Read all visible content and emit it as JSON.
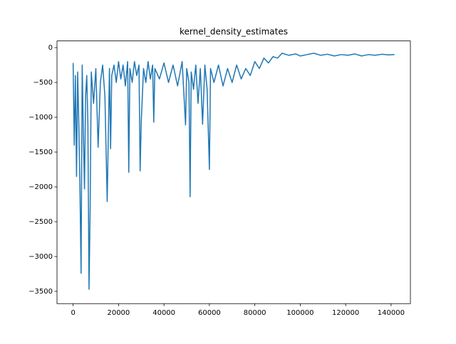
{
  "chart_data": {
    "type": "line",
    "title": "kernel_density_estimates",
    "x": [
      0,
      500,
      1000,
      1500,
      2000,
      2500,
      3000,
      3500,
      4000,
      4500,
      5000,
      5500,
      6000,
      6500,
      7000,
      7500,
      8000,
      9000,
      10000,
      11000,
      12000,
      13000,
      14000,
      15000,
      16000,
      16500,
      17000,
      18000,
      19000,
      20000,
      21000,
      22000,
      23000,
      24000,
      24500,
      25000,
      26000,
      27000,
      28000,
      29000,
      29500,
      30000,
      31000,
      32000,
      33000,
      34000,
      35000,
      35500,
      36000,
      38000,
      40000,
      42000,
      44000,
      46000,
      48000,
      49500,
      50000,
      51000,
      51500,
      52000,
      53000,
      54000,
      55000,
      56000,
      57000,
      58000,
      59000,
      60000,
      60500,
      62000,
      64000,
      66000,
      68000,
      70000,
      72000,
      74000,
      76000,
      78000,
      80000,
      82000,
      84000,
      86000,
      88000,
      90000,
      92000,
      95000,
      98000,
      100000,
      103000,
      106000,
      109000,
      112000,
      115000,
      118000,
      121000,
      124000,
      127000,
      130000,
      133000,
      136000,
      139000,
      141500
    ],
    "series": [
      {
        "color": "#1f77b4",
        "values": [
          -220,
          -1400,
          -400,
          -1850,
          -350,
          -1100,
          -2000,
          -3240,
          -250,
          -1200,
          -2030,
          -700,
          -400,
          -1100,
          -3470,
          -2300,
          -350,
          -800,
          -300,
          -1430,
          -500,
          -250,
          -700,
          -2210,
          -300,
          -1450,
          -400,
          -250,
          -500,
          -200,
          -450,
          -250,
          -550,
          -200,
          -1790,
          -300,
          -500,
          -200,
          -400,
          -250,
          -1770,
          -1060,
          -300,
          -500,
          -200,
          -450,
          -250,
          -1070,
          -300,
          -450,
          -220,
          -500,
          -250,
          -550,
          -200,
          -1110,
          -300,
          -500,
          -2140,
          -350,
          -600,
          -250,
          -800,
          -300,
          -1100,
          -250,
          -600,
          -1750,
          -300,
          -500,
          -250,
          -550,
          -300,
          -500,
          -250,
          -450,
          -300,
          -400,
          -200,
          -300,
          -150,
          -220,
          -130,
          -150,
          -80,
          -110,
          -90,
          -120,
          -100,
          -80,
          -110,
          -95,
          -120,
          -100,
          -110,
          -90,
          -120,
          -100,
          -110,
          -95,
          -105,
          -100
        ]
      }
    ],
    "xlim": [
      -7100,
      148500
    ],
    "ylim": [
      -3676,
      96
    ],
    "xticks": [
      0,
      20000,
      40000,
      60000,
      80000,
      100000,
      120000,
      140000
    ],
    "yticks": [
      0,
      {
        "value": -500,
        "label": "−500"
      },
      {
        "value": -1000,
        "label": "−1000"
      },
      {
        "value": -1500,
        "label": "−1500"
      },
      {
        "value": -2000,
        "label": "−2000"
      },
      {
        "value": -2500,
        "label": "−2500"
      },
      {
        "value": -3000,
        "label": "−3000"
      },
      {
        "value": -3500,
        "label": "−3500"
      }
    ]
  }
}
